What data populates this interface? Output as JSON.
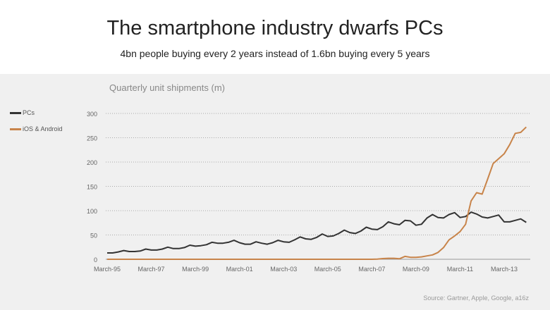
{
  "title": "The smartphone industry dwarfs PCs",
  "subtitle": "4bn people buying every 2 years instead of 1.6bn buying every 5 years",
  "source": "Source: Gartner, Apple, Google, a16z",
  "chart_data": {
    "type": "line",
    "title": "Quarterly unit shipments (m)",
    "xlabel": "",
    "ylabel": "Quarterly unit shipments (m)",
    "ylim": [
      0,
      300
    ],
    "yticks": [
      0,
      50,
      100,
      150,
      200,
      250,
      300
    ],
    "xtick_labels": [
      "March-95",
      "March-97",
      "March-99",
      "March-01",
      "March-03",
      "March-05",
      "March-07",
      "March-09",
      "March-11",
      "March-13"
    ],
    "x_start": "March-95",
    "x_step": "quarter",
    "grid": true,
    "legend_position": "left",
    "series": [
      {
        "name": "PCs",
        "color": "#333333",
        "values": [
          13,
          13,
          15,
          18,
          16,
          16,
          17,
          21,
          19,
          19,
          21,
          25,
          22,
          22,
          24,
          29,
          27,
          28,
          30,
          35,
          33,
          33,
          35,
          39,
          34,
          31,
          31,
          36,
          33,
          31,
          34,
          39,
          36,
          35,
          40,
          46,
          42,
          41,
          45,
          52,
          47,
          48,
          53,
          60,
          55,
          53,
          58,
          66,
          62,
          61,
          67,
          77,
          73,
          71,
          80,
          79,
          70,
          72,
          85,
          92,
          86,
          85,
          92,
          96,
          86,
          88,
          97,
          93,
          87,
          85,
          88,
          91,
          77,
          77,
          80,
          83,
          76
        ]
      },
      {
        "name": "iOS & Android",
        "color": "#c8844a",
        "values": [
          0,
          0,
          0,
          0,
          0,
          0,
          0,
          0,
          0,
          0,
          0,
          0,
          0,
          0,
          0,
          0,
          0,
          0,
          0,
          0,
          0,
          0,
          0,
          0,
          0,
          0,
          0,
          0,
          0,
          0,
          0,
          0,
          0,
          0,
          0,
          0,
          0,
          0,
          0,
          0,
          0,
          0,
          0,
          0,
          0,
          0,
          0,
          0,
          0,
          0.5,
          1.5,
          2,
          2,
          1,
          6,
          4,
          4,
          5,
          7,
          9,
          14,
          24,
          40,
          48,
          57,
          72,
          120,
          137,
          134,
          165,
          197,
          207,
          217,
          236,
          259,
          261,
          272
        ]
      }
    ]
  }
}
